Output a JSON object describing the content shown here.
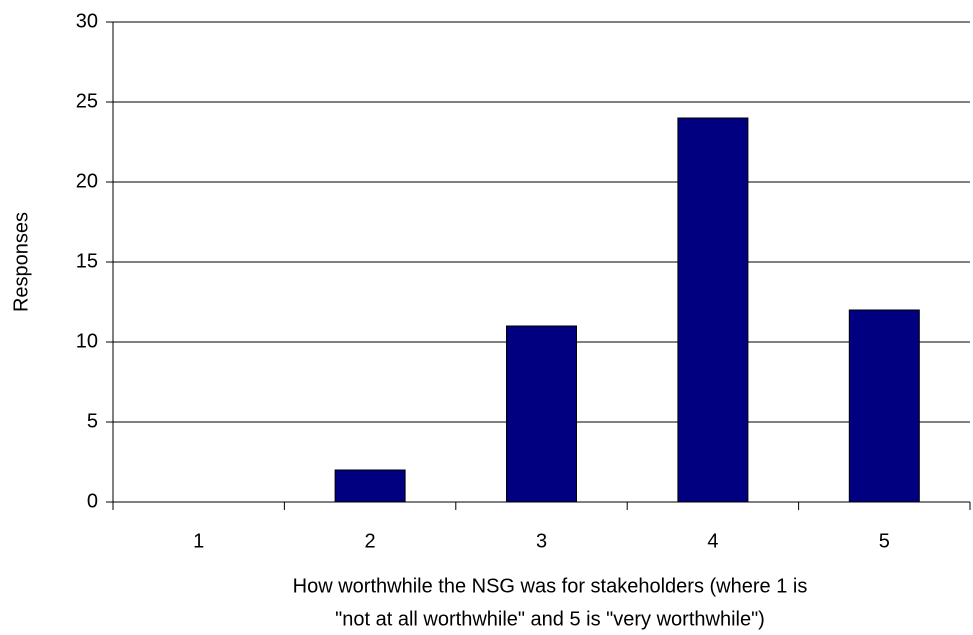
{
  "chart_data": {
    "type": "bar",
    "ylabel": "Responses",
    "xlabel": [
      "How worthwhile the NSG was for stakeholders (where 1 is",
      "\"not at all worthwhile\" and 5 is \"very worthwhile\")"
    ],
    "categories": [
      "1",
      "2",
      "3",
      "4",
      "5"
    ],
    "values": [
      0,
      2,
      11,
      24,
      12
    ],
    "color": "#000080",
    "ylim": [
      0,
      30
    ],
    "yticks": [
      0,
      5,
      10,
      15,
      20,
      25,
      30
    ],
    "grid": true
  }
}
